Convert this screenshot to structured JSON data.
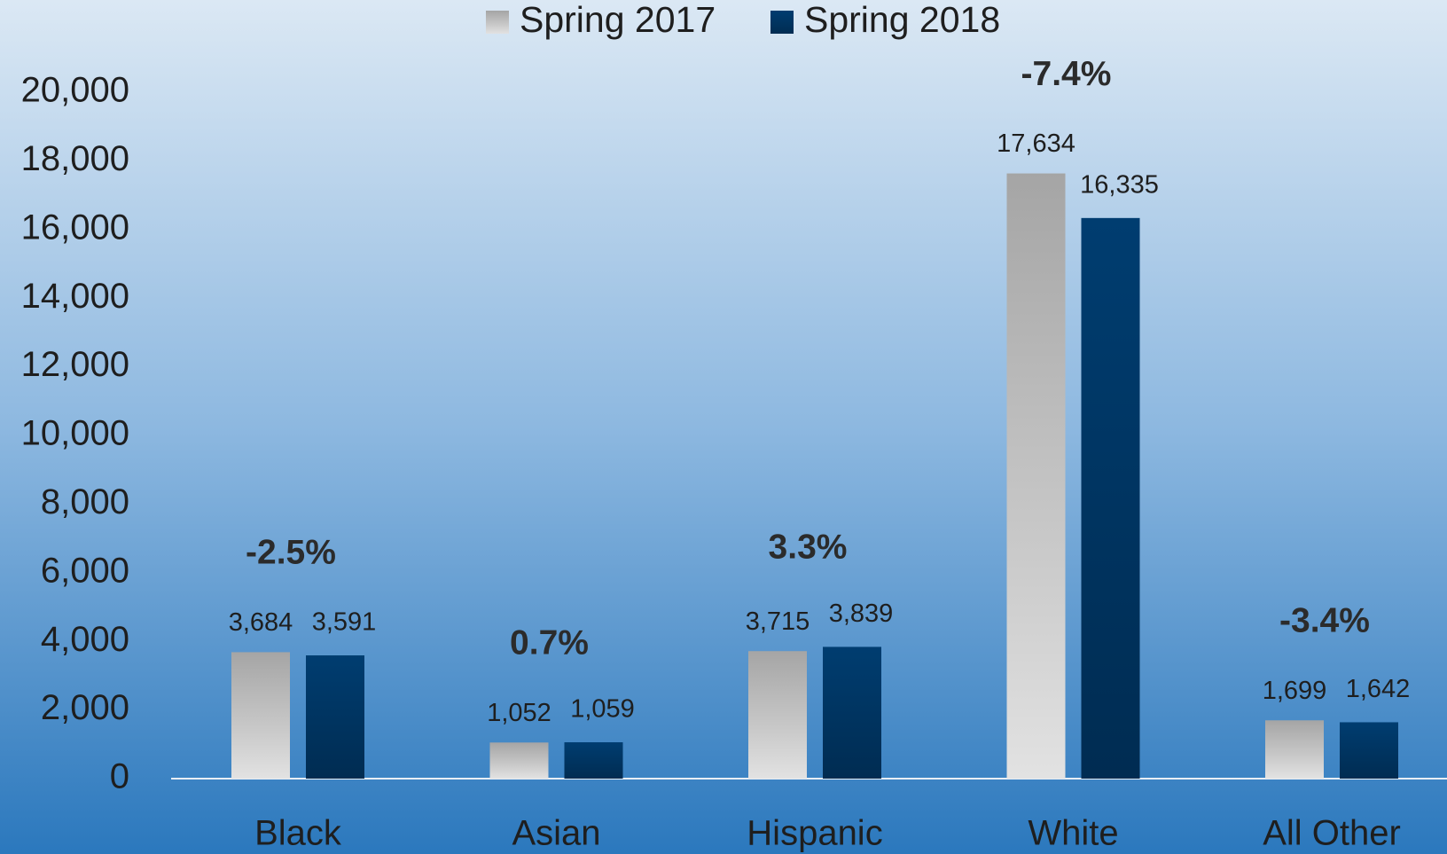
{
  "chart_data": {
    "type": "bar",
    "categories": [
      "Black",
      "Asian",
      "Hispanic",
      "White",
      "All Other"
    ],
    "series": [
      {
        "name": "Spring 2017",
        "color": "#c8c8c8",
        "values": [
          3684,
          1052,
          3715,
          17634,
          1699
        ],
        "value_labels": [
          "3,684",
          "1,052",
          "3,715",
          "17,634",
          "1,699"
        ]
      },
      {
        "name": "Spring 2018",
        "color": "#003d70",
        "values": [
          3591,
          1059,
          3839,
          16335,
          1642
        ],
        "value_labels": [
          "3,591",
          "1,059",
          "3,839",
          "16,335",
          "1,642"
        ]
      }
    ],
    "annotations": [
      "-2.5%",
      "0.7%",
      "3.3%",
      "-7.4%",
      "-3.4%"
    ],
    "ylim": [
      0,
      20000
    ],
    "yticks": [
      0,
      {
        "value": 2000,
        "label": "2,000"
      },
      {
        "value": 4000,
        "label": "4,000"
      },
      {
        "value": 6000,
        "label": "6,000"
      },
      {
        "value": 8000,
        "label": "8,000"
      },
      {
        "value": 10000,
        "label": "10,000"
      },
      {
        "value": 12000,
        "label": "12,000"
      },
      {
        "value": 14000,
        "label": "14,000"
      },
      {
        "value": 16000,
        "label": "16,000"
      },
      {
        "value": 18000,
        "label": "18,000"
      },
      {
        "value": 20000,
        "label": "20,000"
      }
    ],
    "legend": "top",
    "grid": false
  }
}
